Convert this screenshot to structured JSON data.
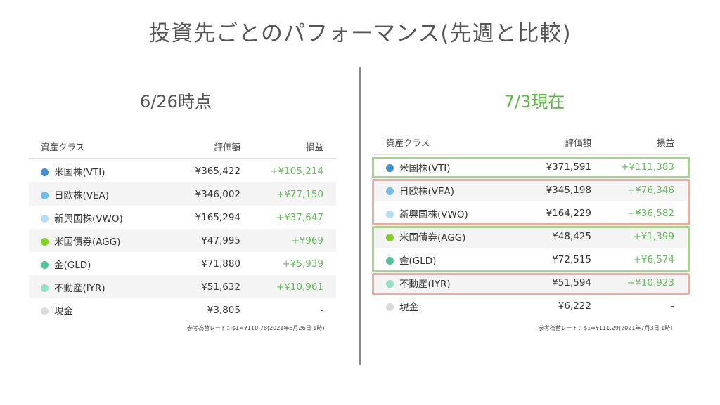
{
  "page_title": "投資先ごとのパフォーマンス(先週と比較)",
  "left": {
    "title": "6/26時点",
    "headers": {
      "asset": "資産クラス",
      "value": "評価額",
      "gain": "損益"
    },
    "rows": [
      {
        "name": "米国株(VTI)",
        "value": "¥365,422",
        "gain": "+¥105,214",
        "dot": "#3d8fd1"
      },
      {
        "name": "日欧株(VEA)",
        "value": "¥346,002",
        "gain": "+¥77,150",
        "dot": "#6fbde8"
      },
      {
        "name": "新興国株(VWO)",
        "value": "¥165,294",
        "gain": "+¥37,647",
        "dot": "#b3dcf5"
      },
      {
        "name": "米国債券(AGG)",
        "value": "¥47,995",
        "gain": "+¥969",
        "dot": "#7ed321"
      },
      {
        "name": "金(GLD)",
        "value": "¥71,880",
        "gain": "+¥5,939",
        "dot": "#4fc79a"
      },
      {
        "name": "不動産(IYR)",
        "value": "¥51,632",
        "gain": "+¥10,961",
        "dot": "#92e2c6"
      },
      {
        "name": "現金",
        "value": "¥3,805",
        "gain": "-",
        "dot": "#dadada"
      }
    ],
    "note": "参考為替レート：$1=¥110.78(2021年6月26日 1時)"
  },
  "right": {
    "title": "7/3現在",
    "headers": {
      "asset": "資産クラス",
      "value": "評価額",
      "gain": "損益"
    },
    "rows": [
      {
        "name": "米国株(VTI)",
        "value": "¥371,591",
        "gain": "+¥111,383",
        "dot": "#3d8fd1"
      },
      {
        "name": "日欧株(VEA)",
        "value": "¥345,198",
        "gain": "+¥76,346",
        "dot": "#6fbde8"
      },
      {
        "name": "新興国株(VWO)",
        "value": "¥164,229",
        "gain": "+¥36,582",
        "dot": "#b3dcf5"
      },
      {
        "name": "米国債券(AGG)",
        "value": "¥48,425",
        "gain": "+¥1,399",
        "dot": "#7ed321"
      },
      {
        "name": "金(GLD)",
        "value": "¥72,515",
        "gain": "+¥6,574",
        "dot": "#4fc79a"
      },
      {
        "name": "不動産(IYR)",
        "value": "¥51,594",
        "gain": "+¥10,923",
        "dot": "#92e2c6"
      },
      {
        "name": "現金",
        "value": "¥6,222",
        "gain": "-",
        "dot": "#dadada"
      }
    ],
    "note": "参考為替レート：$1=¥111.29(2021年7月3日 1時)"
  },
  "colors": {
    "gain": "#63c05a",
    "highlight_up": "#a5d48f",
    "highlight_down": "#eeaba0",
    "right_title": "#5bb842"
  }
}
